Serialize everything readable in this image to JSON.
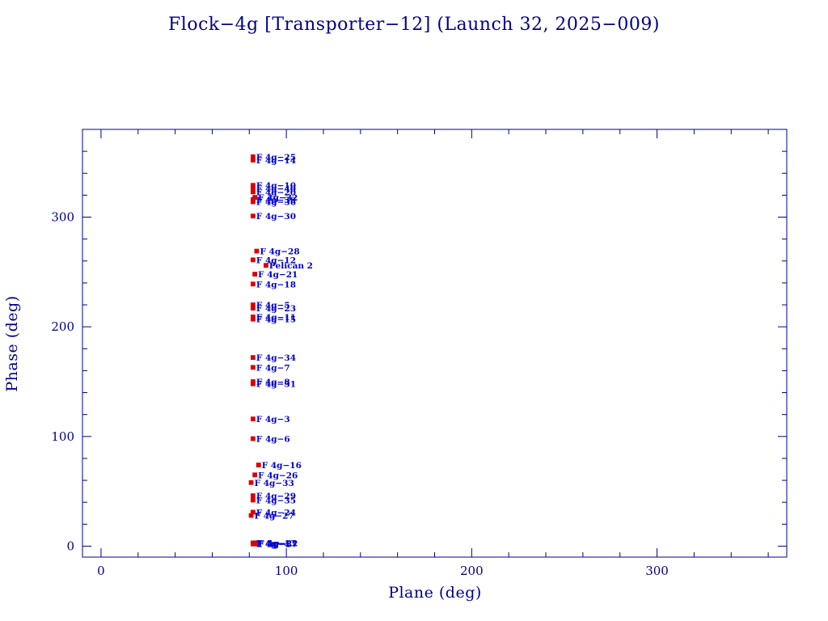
{
  "chart_data": {
    "type": "scatter",
    "title": "Flock−4g [Transporter−12] (Launch 32, 2025−009)",
    "xlabel": "Plane (deg)",
    "ylabel": "Phase (deg)",
    "xlim": [
      -10,
      370
    ],
    "ylim": [
      -10,
      380
    ],
    "xticks": [
      0,
      100,
      200,
      300
    ],
    "yticks": [
      0,
      100,
      200,
      300
    ],
    "xtick_labels": [
      "0",
      "100",
      "200",
      "300"
    ],
    "ytick_labels": [
      "0",
      "100",
      "200",
      "300"
    ],
    "grid": false,
    "colors": {
      "axes": "#00008b",
      "marker": "#dd0000",
      "label": "#0000cc"
    },
    "points": [
      {
        "label": "F 4g−25",
        "x": 82,
        "y": 355
      },
      {
        "label": "F 4g−14",
        "x": 82,
        "y": 352
      },
      {
        "label": "F 4g−10",
        "x": 82,
        "y": 329
      },
      {
        "label": "F 4g−40",
        "x": 82,
        "y": 326
      },
      {
        "label": "F 4g−20",
        "x": 82,
        "y": 323
      },
      {
        "label": "F 4g−32",
        "x": 83,
        "y": 318
      },
      {
        "label": "F 4g−39",
        "x": 82,
        "y": 316
      },
      {
        "label": "F 4g−36",
        "x": 82,
        "y": 314
      },
      {
        "label": "F 4g−30",
        "x": 82,
        "y": 301
      },
      {
        "label": "F 4g−28",
        "x": 84,
        "y": 269
      },
      {
        "label": "F 4g−12",
        "x": 82,
        "y": 261
      },
      {
        "label": "Pelican 2",
        "x": 89,
        "y": 256
      },
      {
        "label": "F 4g−21",
        "x": 83,
        "y": 248
      },
      {
        "label": "F 4g−18",
        "x": 82,
        "y": 239
      },
      {
        "label": "F 4g−5",
        "x": 82,
        "y": 220
      },
      {
        "label": "F 4g−23",
        "x": 82,
        "y": 217
      },
      {
        "label": "F 4g−11",
        "x": 82,
        "y": 209
      },
      {
        "label": "F 4g−15",
        "x": 82,
        "y": 207
      },
      {
        "label": "F 4g−34",
        "x": 82,
        "y": 172
      },
      {
        "label": "F 4g−7",
        "x": 82,
        "y": 163
      },
      {
        "label": "F 4g−8",
        "x": 82,
        "y": 150
      },
      {
        "label": "F 4g−31",
        "x": 82,
        "y": 148
      },
      {
        "label": "F 4g−3",
        "x": 82,
        "y": 116
      },
      {
        "label": "F 4g−6",
        "x": 82,
        "y": 98
      },
      {
        "label": "F 4g−16",
        "x": 85,
        "y": 74
      },
      {
        "label": "F 4g−26",
        "x": 83,
        "y": 65
      },
      {
        "label": "F 4g−33",
        "x": 81,
        "y": 58
      },
      {
        "label": "F 4g−29",
        "x": 82,
        "y": 46
      },
      {
        "label": "F 4g−35",
        "x": 82,
        "y": 42
      },
      {
        "label": "F 4g−24",
        "x": 82,
        "y": 31
      },
      {
        "label": "F 4g−27",
        "x": 81,
        "y": 28
      },
      {
        "label": "F 4g−13",
        "x": 82,
        "y": 3
      },
      {
        "label": "F 4g−22",
        "x": 83,
        "y": 3
      },
      {
        "label": "F 4g−37",
        "x": 83,
        "y": 2
      },
      {
        "label": "F 4g−4",
        "x": 82,
        "y": 2
      }
    ]
  }
}
